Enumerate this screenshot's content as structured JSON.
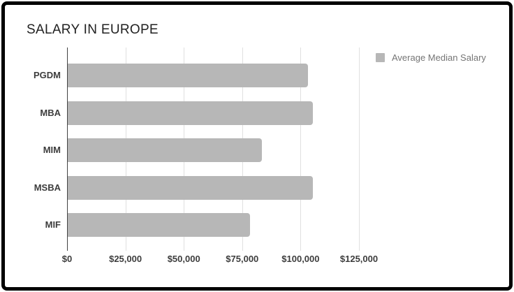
{
  "title": "SALARY IN EUROPE",
  "legend": {
    "label": "Average Median Salary",
    "swatch_color": "#b7b7b7"
  },
  "colors": {
    "bar": "#b7b7b7",
    "gridline": "#e0e0e0",
    "zero_axis_line": "#424242",
    "title_text": "#212121",
    "tick_text": "#3d3d3d",
    "legend_text": "#757575",
    "frame_border": "#000000",
    "background": "#ffffff"
  },
  "chart_data": {
    "type": "bar",
    "orientation": "horizontal",
    "title": "SALARY IN EUROPE",
    "categories": [
      "PGDM",
      "MBA",
      "MIM",
      "MSBA",
      "MIF"
    ],
    "series": [
      {
        "name": "Average Median Salary",
        "values": [
          103000,
          105000,
          83000,
          105000,
          78000
        ]
      }
    ],
    "xlabel": "",
    "ylabel": "",
    "xlim": [
      0,
      125000
    ],
    "xticks": [
      0,
      25000,
      50000,
      75000,
      100000,
      125000
    ],
    "xtick_labels": [
      "$0",
      "$25,000",
      "$50,000",
      "$75,000",
      "$100,000",
      "$125,000"
    ],
    "grid": "vertical",
    "legend_position": "top-right"
  }
}
